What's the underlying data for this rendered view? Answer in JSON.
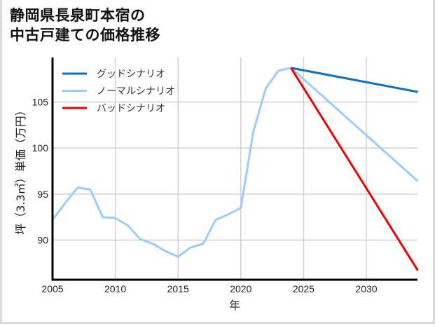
{
  "title_line1": "静岡県長泉町本宿の",
  "title_line2": "中古戸建ての価格推移",
  "chart_data": {
    "type": "line",
    "title": "静岡県長泉町本宿の中古戸建ての価格推移",
    "xlabel": "年",
    "ylabel": "坪（3.3㎡）単価（万円）",
    "xlim": [
      2005,
      2034.1
    ],
    "ylim": [
      86.7,
      109.8
    ],
    "xticks": [
      2005,
      2010,
      2015,
      2020,
      2025,
      2030
    ],
    "yticks": [
      90,
      95,
      100,
      105
    ],
    "grid": true,
    "legend_position": "upper left",
    "series": [
      {
        "name": "グッドシナリオ",
        "color": "#0b6fc4",
        "x": [
          2024,
          2034.1
        ],
        "values": [
          108.7,
          106.1
        ]
      },
      {
        "name": "ノーマルシナリオ",
        "color": "#99ccff",
        "x": [
          2005,
          2006,
          2007,
          2008,
          2009,
          2010,
          2011,
          2012,
          2013,
          2014,
          2015,
          2016,
          2017,
          2018,
          2019,
          2020,
          2021,
          2022,
          2023,
          2024,
          2034.1
        ],
        "values": [
          92.2,
          94.0,
          95.7,
          95.5,
          92.5,
          92.4,
          91.6,
          90.1,
          89.6,
          88.8,
          88.2,
          89.2,
          89.6,
          92.2,
          92.8,
          93.5,
          101.8,
          106.5,
          108.4,
          108.7,
          96.4
        ]
      },
      {
        "name": "バッドシナリオ",
        "color": "#ee0000",
        "x": [
          2024,
          2034.1
        ],
        "values": [
          108.7,
          86.7
        ]
      }
    ]
  }
}
